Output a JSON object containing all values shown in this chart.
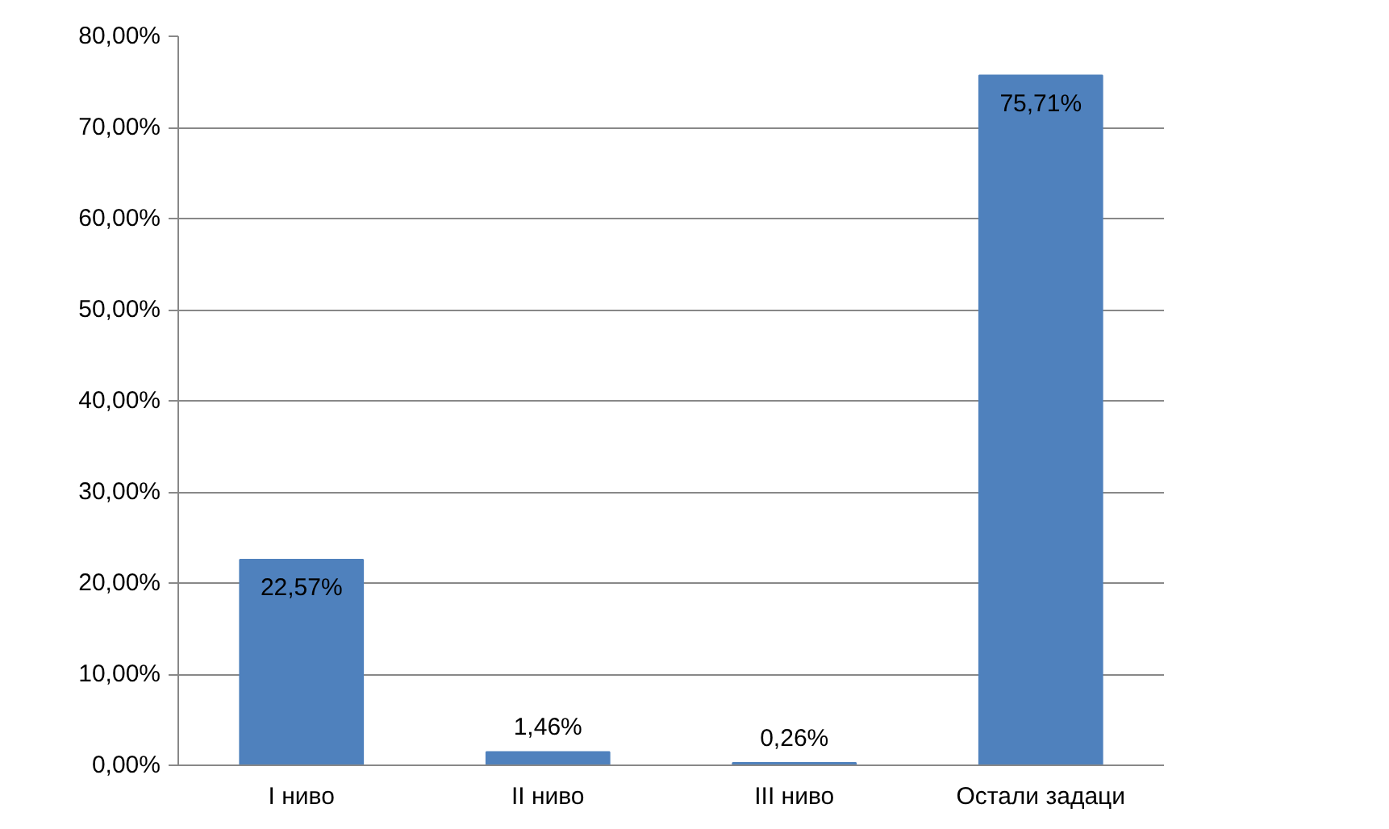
{
  "chart_data": {
    "type": "bar",
    "categories": [
      "I ниво",
      "II ниво",
      "III ниво",
      "Остали задаци"
    ],
    "values": [
      22.57,
      1.46,
      0.26,
      75.71
    ],
    "color": "#4f81bd",
    "value_labels": [
      "22,57%",
      "1,46%",
      "0,26%",
      "75,71%"
    ],
    "ylim": [
      0,
      80
    ],
    "yticks": [
      {
        "value": 0,
        "label": "0,00%"
      },
      {
        "value": 10,
        "label": "10,00%"
      },
      {
        "value": 20,
        "label": "20,00%"
      },
      {
        "value": 30,
        "label": "30,00%"
      },
      {
        "value": 40,
        "label": "40,00%"
      },
      {
        "value": 50,
        "label": "50,00%"
      },
      {
        "value": 60,
        "label": "60,00%"
      },
      {
        "value": 70,
        "label": "70,00%"
      },
      {
        "value": 80,
        "label": "80,00%"
      }
    ],
    "grid": "y"
  }
}
